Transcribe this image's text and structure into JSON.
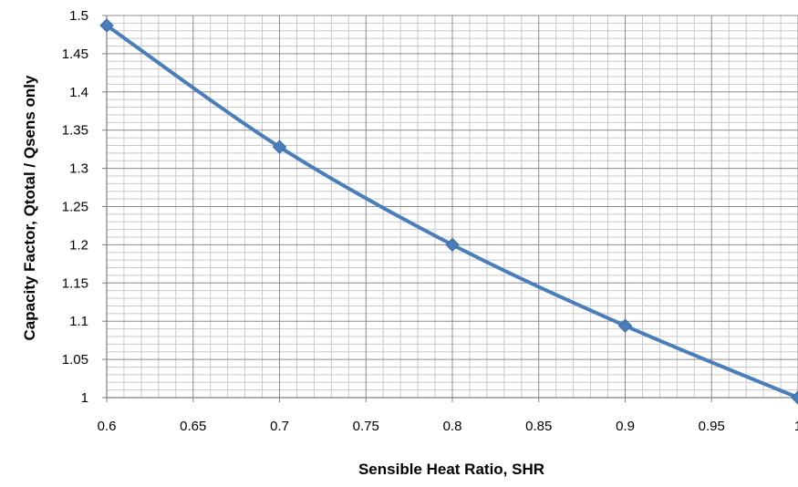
{
  "chart_data": {
    "type": "line",
    "xlabel": "Sensible Heat Ratio, SHR",
    "ylabel": "Capacity Factor, Qtotal / Qsens only",
    "xlim": [
      0.6,
      1.0
    ],
    "ylim": [
      1.0,
      1.5
    ],
    "x_ticks": [
      "0.6",
      "0.65",
      "0.7",
      "0.75",
      "0.8",
      "0.85",
      "0.9",
      "0.95",
      "1"
    ],
    "y_ticks": [
      "1",
      "1.05",
      "1.1",
      "1.15",
      "1.2",
      "1.25",
      "1.3",
      "1.35",
      "1.4",
      "1.45",
      "1.5"
    ],
    "grid": true,
    "legend": "none",
    "series": [
      {
        "color": "#4a7ebb",
        "marker": "diamond",
        "x": [
          0.6,
          0.7,
          0.8,
          0.9,
          1.0
        ],
        "y": [
          1.487,
          1.328,
          1.2,
          1.094,
          1.0
        ]
      }
    ]
  }
}
